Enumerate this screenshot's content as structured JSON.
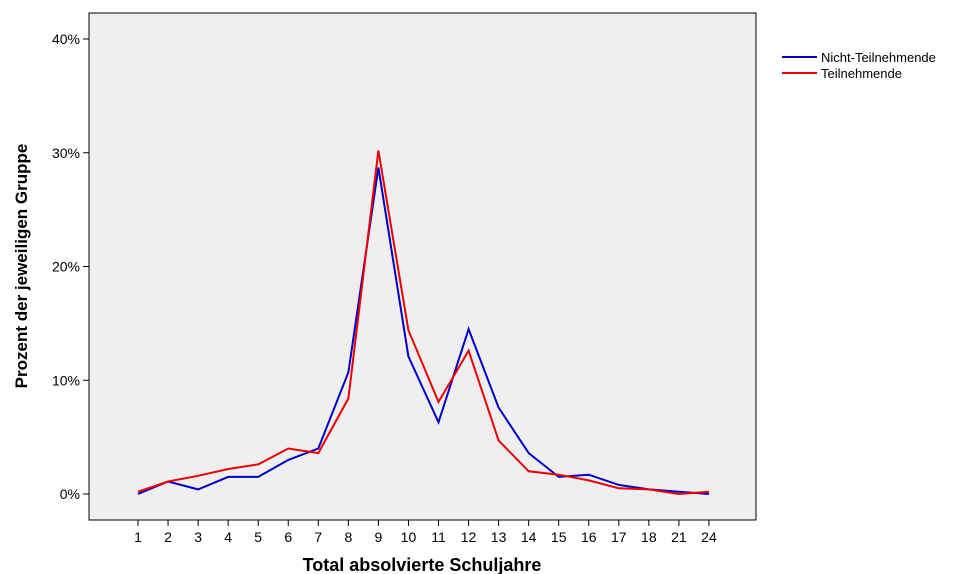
{
  "chart_data": {
    "type": "line",
    "xlabel": "Total absolvierte Schuljahre",
    "ylabel": "Prozent der jeweiligen Gruppe",
    "categories": [
      "1",
      "2",
      "3",
      "4",
      "5",
      "6",
      "7",
      "8",
      "9",
      "10",
      "11",
      "12",
      "13",
      "14",
      "15",
      "16",
      "17",
      "18",
      "21",
      "24"
    ],
    "ylim": [
      0,
      40
    ],
    "yticks": [
      0,
      10,
      20,
      30,
      40
    ],
    "ytick_labels": [
      "0%",
      "10%",
      "20%",
      "30%",
      "40%"
    ],
    "grid": false,
    "legend_position": "top-right",
    "plot_background": "#efefef",
    "series": [
      {
        "name": "Nicht-Teilnehmende",
        "color": "#0000c8",
        "values": [
          0.0,
          1.1,
          0.4,
          1.5,
          1.5,
          3.0,
          4.0,
          10.7,
          28.7,
          12.1,
          6.3,
          14.5,
          7.6,
          3.6,
          1.5,
          1.7,
          0.8,
          0.4,
          0.2,
          0.0
        ]
      },
      {
        "name": "Teilnehmende",
        "color": "#ee0000",
        "values": [
          0.2,
          1.1,
          1.6,
          2.2,
          2.6,
          4.0,
          3.6,
          8.4,
          30.2,
          14.4,
          8.1,
          12.6,
          4.7,
          2.0,
          1.7,
          1.2,
          0.5,
          0.4,
          0.0,
          0.2
        ]
      }
    ]
  }
}
